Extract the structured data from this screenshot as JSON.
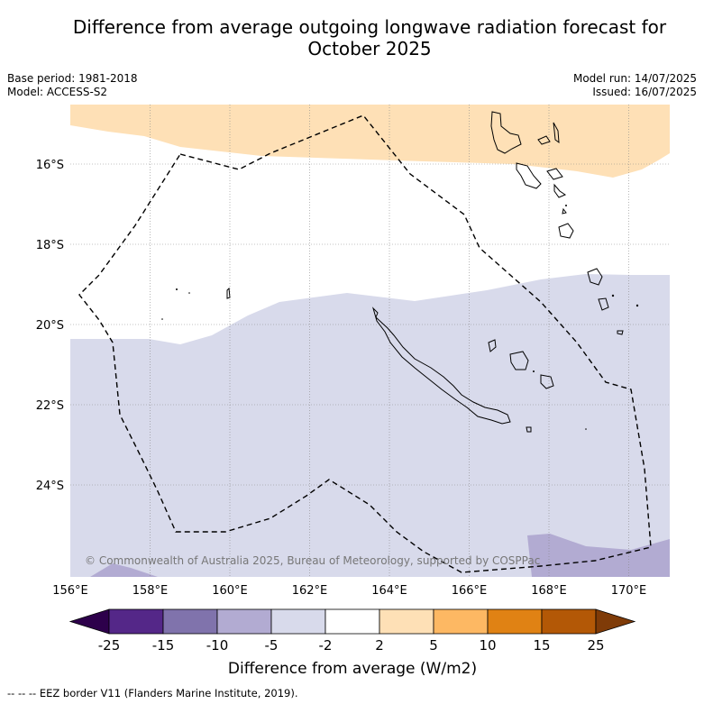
{
  "header": {
    "title_line1": "Difference from average outgoing longwave radiation forecast for",
    "title_line2": "October 2025",
    "base_period": "Base period: 1981-2018",
    "model": "Model: ACCESS-S2",
    "model_run": "Model run: 14/07/2025",
    "issued": "Issued: 16/07/2025"
  },
  "map": {
    "lon_ticks": [
      "156°E",
      "158°E",
      "160°E",
      "162°E",
      "164°E",
      "166°E",
      "168°E",
      "170°E"
    ],
    "lat_ticks": [
      "16°S",
      "18°S",
      "20°S",
      "22°S",
      "24°S"
    ],
    "copyright": "© Commonwealth of Australia 2025, Bureau of Meteorology, supported by COSPPac"
  },
  "colorbar": {
    "label": "Difference from average (W/m2)",
    "ticks": [
      "-25",
      "-15",
      "-10",
      "-5",
      "-2",
      "2",
      "5",
      "10",
      "15",
      "25"
    ],
    "colors": [
      "#2d004b",
      "#542788",
      "#8073ac",
      "#b2abd2",
      "#d8daeb",
      "#ffffff",
      "#fee0b6",
      "#fdb863",
      "#e08214",
      "#b35806",
      "#7f3b08"
    ]
  },
  "footer": {
    "eez_note": "-- -- -- EEZ border V11 (Flanders Marine Institute, 2019)."
  }
}
